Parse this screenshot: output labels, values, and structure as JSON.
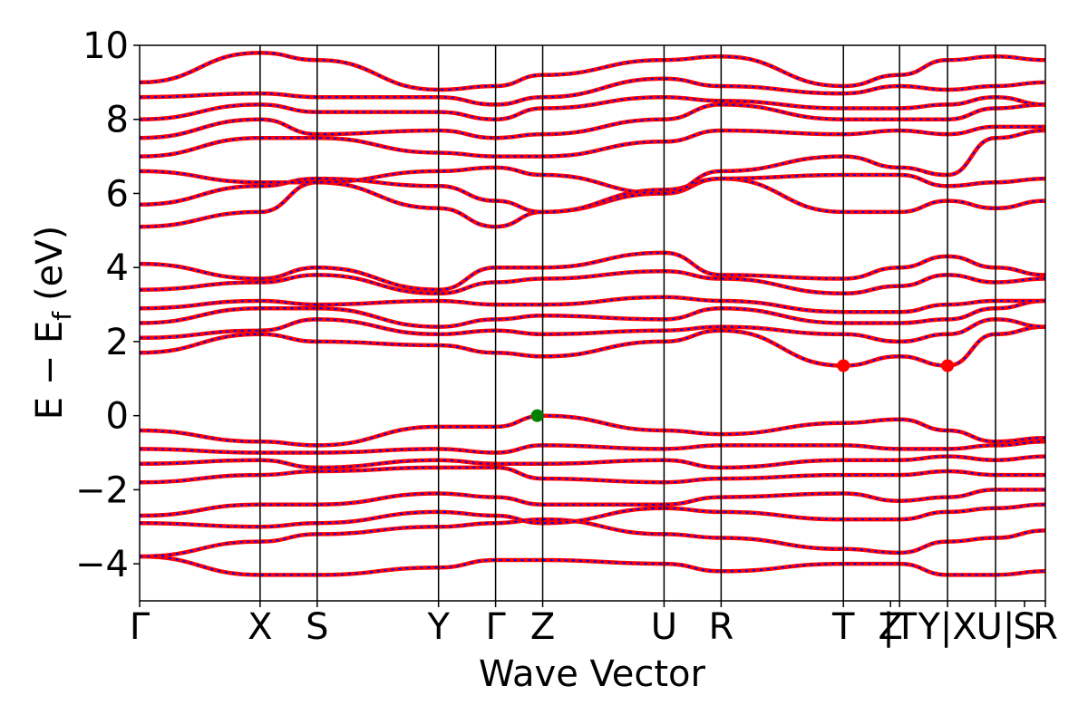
{
  "chart_data": {
    "type": "line",
    "xlabel": "Wave Vector",
    "ylabel": "E − E",
    "ylabel_sub": "f",
    "ylabel_unit": "(eV)",
    "ylim": [
      -5,
      10
    ],
    "yticks": [
      -4,
      -2,
      0,
      2,
      4,
      6,
      8,
      10
    ],
    "xlim": [
      0,
      1
    ],
    "kpoints": [
      {
        "label": "Γ",
        "x": 0.0
      },
      {
        "label": "X",
        "x": 0.133
      },
      {
        "label": "S",
        "x": 0.196
      },
      {
        "label": "Y",
        "x": 0.33
      },
      {
        "label": "Γ",
        "x": 0.393
      },
      {
        "label": "Z",
        "x": 0.445
      },
      {
        "label": "U",
        "x": 0.579
      },
      {
        "label": "R",
        "x": 0.642
      },
      {
        "label": "T",
        "x": 0.777
      },
      {
        "label": "Z",
        "x": 0.829
      },
      {
        "label": "|T",
        "x": 0.839
      },
      {
        "label": "Y|X",
        "x": 0.892
      },
      {
        "label": "U|",
        "x": 0.945
      },
      {
        "label": "S",
        "x": 0.977
      },
      {
        "label": "R",
        "x": 1.0
      }
    ],
    "vlines": [
      0.133,
      0.196,
      0.33,
      0.393,
      0.445,
      0.579,
      0.642,
      0.777,
      0.839,
      0.892,
      0.945
    ],
    "band_colors": {
      "line": "#ff0000",
      "dash": "#0000ff"
    },
    "extrema": [
      {
        "type": "VBM",
        "x": 0.439,
        "y": 0.0,
        "color": "#008000"
      },
      {
        "type": "CBM",
        "x": 0.777,
        "y": 1.35,
        "color": "#ff0000"
      },
      {
        "type": "CBM",
        "x": 0.892,
        "y": 1.35,
        "color": "#ff0000"
      }
    ],
    "series": [
      {
        "x": [
          0,
          0.133,
          0.196,
          0.33,
          0.393,
          0.445,
          0.579,
          0.642,
          0.777,
          0.839,
          0.892,
          0.945,
          1.0
        ],
        "values": [
          -3.8,
          -4.3,
          -4.3,
          -4.1,
          -3.9,
          -3.9,
          -4.0,
          -4.2,
          -4.0,
          -4.0,
          -4.3,
          -4.3,
          -4.2
        ]
      },
      {
        "x": [
          0,
          0.133,
          0.196,
          0.33,
          0.393,
          0.445,
          0.579,
          0.642,
          0.777,
          0.839,
          0.892,
          0.945,
          1.0
        ],
        "values": [
          -3.8,
          -3.4,
          -3.2,
          -3.0,
          -2.9,
          -2.8,
          -3.2,
          -3.3,
          -3.6,
          -3.7,
          -3.4,
          -3.3,
          -3.1
        ]
      },
      {
        "x": [
          0,
          0.133,
          0.196,
          0.33,
          0.393,
          0.445,
          0.579,
          0.642,
          0.777,
          0.839,
          0.892,
          0.945,
          1.0
        ],
        "values": [
          -2.9,
          -3.0,
          -2.9,
          -2.6,
          -2.7,
          -2.9,
          -2.5,
          -2.6,
          -2.8,
          -2.8,
          -2.6,
          -2.5,
          -2.4
        ]
      },
      {
        "x": [
          0,
          0.133,
          0.196,
          0.33,
          0.393,
          0.445,
          0.579,
          0.642,
          0.777,
          0.839,
          0.892,
          0.945,
          1.0
        ],
        "values": [
          -2.7,
          -2.4,
          -2.4,
          -2.1,
          -2.2,
          -2.4,
          -2.4,
          -2.2,
          -2.1,
          -2.3,
          -2.2,
          -2.0,
          -2.0
        ]
      },
      {
        "x": [
          0,
          0.133,
          0.196,
          0.33,
          0.393,
          0.445,
          0.579,
          0.642,
          0.777,
          0.839,
          0.892,
          0.945,
          1.0
        ],
        "values": [
          -1.8,
          -1.6,
          -1.5,
          -1.4,
          -1.4,
          -1.7,
          -1.8,
          -1.7,
          -1.6,
          -1.6,
          -1.5,
          -1.6,
          -1.6
        ]
      },
      {
        "x": [
          0,
          0.133,
          0.196,
          0.33,
          0.393,
          0.445,
          0.579,
          0.642,
          0.777,
          0.839,
          0.892,
          0.945,
          1.0
        ],
        "values": [
          -1.3,
          -1.2,
          -1.4,
          -1.2,
          -1.3,
          -1.3,
          -1.2,
          -1.4,
          -1.2,
          -1.2,
          -1.1,
          -1.2,
          -1.1
        ]
      },
      {
        "x": [
          0,
          0.133,
          0.196,
          0.33,
          0.393,
          0.445,
          0.579,
          0.642,
          0.777,
          0.839,
          0.892,
          0.945,
          1.0
        ],
        "values": [
          -0.9,
          -1.0,
          -1.0,
          -0.9,
          -1.0,
          -0.8,
          -0.9,
          -0.8,
          -0.8,
          -0.9,
          -0.9,
          -0.8,
          -0.7
        ]
      },
      {
        "x": [
          0,
          0.133,
          0.196,
          0.33,
          0.393,
          0.445,
          0.579,
          0.642,
          0.777,
          0.839,
          0.892,
          0.945,
          1.0
        ],
        "values": [
          -0.4,
          -0.7,
          -0.8,
          -0.3,
          -0.3,
          0.0,
          -0.4,
          -0.5,
          -0.2,
          -0.1,
          -0.4,
          -0.7,
          -0.6
        ]
      },
      {
        "x": [
          0,
          0.133,
          0.196,
          0.33,
          0.393,
          0.445,
          0.579,
          0.642,
          0.777,
          0.839,
          0.892,
          0.945,
          1.0
        ],
        "values": [
          1.7,
          2.2,
          2.0,
          1.9,
          1.7,
          1.6,
          2.0,
          2.3,
          1.35,
          1.6,
          1.35,
          2.2,
          2.4
        ]
      },
      {
        "x": [
          0,
          0.133,
          0.196,
          0.33,
          0.393,
          0.445,
          0.579,
          0.642,
          0.777,
          0.839,
          0.892,
          0.945,
          1.0
        ],
        "values": [
          2.1,
          2.3,
          2.6,
          2.2,
          2.3,
          2.2,
          2.3,
          2.4,
          2.2,
          2.0,
          2.2,
          2.6,
          2.4
        ]
      },
      {
        "x": [
          0,
          0.133,
          0.196,
          0.33,
          0.393,
          0.445,
          0.579,
          0.642,
          0.777,
          0.839,
          0.892,
          0.945,
          1.0
        ],
        "values": [
          2.5,
          2.9,
          2.9,
          2.4,
          2.6,
          2.7,
          2.6,
          2.9,
          2.5,
          2.5,
          2.6,
          2.9,
          3.1
        ]
      },
      {
        "x": [
          0,
          0.133,
          0.196,
          0.33,
          0.393,
          0.445,
          0.579,
          0.642,
          0.777,
          0.839,
          0.892,
          0.945,
          1.0
        ],
        "values": [
          2.9,
          3.1,
          3.0,
          3.1,
          3.0,
          3.0,
          3.2,
          3.1,
          2.8,
          2.8,
          3.0,
          3.1,
          3.1
        ]
      },
      {
        "x": [
          0,
          0.133,
          0.196,
          0.33,
          0.393,
          0.445,
          0.579,
          0.642,
          0.777,
          0.839,
          0.892,
          0.945,
          1.0
        ],
        "values": [
          3.4,
          3.6,
          3.8,
          3.3,
          3.6,
          3.7,
          3.9,
          3.7,
          3.3,
          3.5,
          3.8,
          3.6,
          3.7
        ]
      },
      {
        "x": [
          0,
          0.133,
          0.196,
          0.33,
          0.393,
          0.445,
          0.579,
          0.642,
          0.777,
          0.839,
          0.892,
          0.945,
          1.0
        ],
        "values": [
          4.1,
          3.7,
          4.0,
          3.4,
          4.0,
          4.0,
          4.4,
          3.8,
          3.7,
          4.0,
          4.3,
          4.0,
          3.8
        ]
      },
      {
        "x": [
          0,
          0.133,
          0.196,
          0.33,
          0.393,
          0.445,
          0.579,
          0.642,
          0.777,
          0.839,
          0.892,
          0.945,
          1.0
        ],
        "values": [
          5.1,
          5.5,
          6.3,
          5.6,
          5.1,
          5.5,
          6.0,
          6.4,
          5.5,
          5.5,
          5.8,
          5.6,
          5.8
        ]
      },
      {
        "x": [
          0,
          0.133,
          0.196,
          0.33,
          0.393,
          0.445,
          0.579,
          0.642,
          0.777,
          0.839,
          0.892,
          0.945,
          1.0
        ],
        "values": [
          5.7,
          6.2,
          6.4,
          6.2,
          5.8,
          5.5,
          6.1,
          6.4,
          6.5,
          6.5,
          6.2,
          6.3,
          6.4
        ]
      },
      {
        "x": [
          0,
          0.133,
          0.196,
          0.33,
          0.393,
          0.445,
          0.579,
          0.642,
          0.777,
          0.839,
          0.892,
          0.945,
          1.0
        ],
        "values": [
          6.6,
          6.3,
          6.3,
          6.6,
          6.7,
          6.5,
          6.0,
          6.6,
          7.0,
          6.7,
          6.5,
          7.5,
          7.7
        ]
      },
      {
        "x": [
          0,
          0.133,
          0.196,
          0.33,
          0.393,
          0.445,
          0.579,
          0.642,
          0.777,
          0.839,
          0.892,
          0.945,
          1.0
        ],
        "values": [
          7.0,
          7.5,
          7.5,
          7.1,
          7.0,
          7.0,
          7.4,
          7.7,
          7.6,
          7.7,
          7.6,
          7.8,
          7.8
        ]
      },
      {
        "x": [
          0,
          0.133,
          0.196,
          0.33,
          0.393,
          0.445,
          0.579,
          0.642,
          0.777,
          0.839,
          0.892,
          0.945,
          1.0
        ],
        "values": [
          7.5,
          8.0,
          7.6,
          7.7,
          7.5,
          7.6,
          8.0,
          8.4,
          8.0,
          8.0,
          8.0,
          8.3,
          8.4
        ]
      },
      {
        "x": [
          0,
          0.133,
          0.196,
          0.33,
          0.393,
          0.445,
          0.579,
          0.642,
          0.777,
          0.839,
          0.892,
          0.945,
          1.0
        ],
        "values": [
          8.0,
          8.4,
          8.2,
          8.2,
          8.0,
          8.3,
          8.6,
          8.5,
          8.3,
          8.3,
          8.4,
          8.6,
          8.4
        ]
      },
      {
        "x": [
          0,
          0.133,
          0.196,
          0.33,
          0.393,
          0.445,
          0.579,
          0.642,
          0.777,
          0.839,
          0.892,
          0.945,
          1.0
        ],
        "values": [
          8.6,
          8.7,
          8.6,
          8.6,
          8.4,
          8.6,
          9.1,
          8.9,
          8.7,
          8.9,
          8.8,
          8.9,
          9.0
        ]
      },
      {
        "x": [
          0,
          0.133,
          0.196,
          0.33,
          0.393,
          0.445,
          0.579,
          0.642,
          0.777,
          0.839,
          0.892,
          0.945,
          1.0
        ],
        "values": [
          9.0,
          9.8,
          9.6,
          8.8,
          8.9,
          9.2,
          9.6,
          9.7,
          8.9,
          9.2,
          9.6,
          9.7,
          9.6
        ]
      }
    ]
  }
}
